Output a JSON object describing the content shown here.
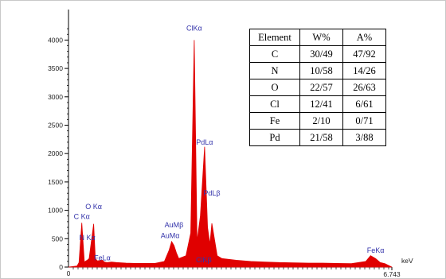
{
  "chart_data": {
    "type": "line",
    "xlabel": "keV",
    "xmax_label": "6.743",
    "x_ticks": [
      "0"
    ],
    "xlim": [
      0,
      6.743
    ],
    "ylim": [
      0,
      4300
    ],
    "y_ticks": [
      0,
      500,
      1000,
      1500,
      2000,
      2500,
      3000,
      3500,
      4000
    ],
    "y_tick_labels": [
      "0",
      "500",
      "1000",
      "1500",
      "2000",
      "2500",
      "3000",
      "3500",
      "4000"
    ],
    "series_color": "#e00000",
    "annotation_color": "#3333aa",
    "spectrum": {
      "x": [
        0.0,
        0.18,
        0.22,
        0.277,
        0.33,
        0.39,
        0.43,
        0.525,
        0.56,
        0.6,
        0.705,
        0.75,
        0.8,
        0.9,
        1.0,
        1.2,
        1.4,
        1.6,
        1.8,
        2.0,
        2.1,
        2.15,
        2.2,
        2.25,
        2.3,
        2.45,
        2.55,
        2.622,
        2.68,
        2.75,
        2.838,
        2.9,
        2.95,
        2.99,
        3.1,
        3.2,
        3.5,
        3.8,
        4.1,
        4.4,
        4.7,
        5.0,
        5.3,
        5.6,
        5.9,
        6.2,
        6.3,
        6.404,
        6.5,
        6.6,
        6.743
      ],
      "y": [
        0,
        20,
        80,
        780,
        90,
        120,
        150,
        760,
        150,
        110,
        120,
        90,
        80,
        90,
        80,
        70,
        65,
        65,
        65,
        100,
        300,
        450,
        380,
        250,
        150,
        200,
        600,
        4000,
        450,
        900,
        2120,
        700,
        400,
        770,
        200,
        150,
        120,
        100,
        90,
        80,
        75,
        70,
        70,
        65,
        60,
        100,
        200,
        150,
        80,
        60,
        0
      ]
    },
    "annotations": [
      {
        "label": "ClKα",
        "x": 2.622,
        "y": 4170
      },
      {
        "label": "PdLα",
        "x": 2.838,
        "y": 2160
      },
      {
        "label": "PdLβ",
        "x": 2.99,
        "y": 1260
      },
      {
        "label": "AuMβ",
        "x": 2.2,
        "y": 700
      },
      {
        "label": "AuMα",
        "x": 2.12,
        "y": 510
      },
      {
        "label": "ClKβ",
        "x": 2.82,
        "y": 85
      },
      {
        "label": "O Kα",
        "x": 0.525,
        "y": 1020
      },
      {
        "label": "C Kα",
        "x": 0.277,
        "y": 850
      },
      {
        "label": "N Kα",
        "x": 0.392,
        "y": 475
      },
      {
        "label": "FeLα",
        "x": 0.705,
        "y": 120
      },
      {
        "label": "FeKα",
        "x": 6.404,
        "y": 255
      }
    ]
  },
  "table": {
    "headers": [
      "Element",
      "W%",
      "A%"
    ],
    "rows": [
      [
        "C",
        "30/49",
        "47/92"
      ],
      [
        "N",
        "10/58",
        "14/26"
      ],
      [
        "O",
        "22/57",
        "26/63"
      ],
      [
        "Cl",
        "12/41",
        "6/61"
      ],
      [
        "Fe",
        "2/10",
        "0/71"
      ],
      [
        "Pd",
        "21/58",
        "3/88"
      ]
    ]
  }
}
